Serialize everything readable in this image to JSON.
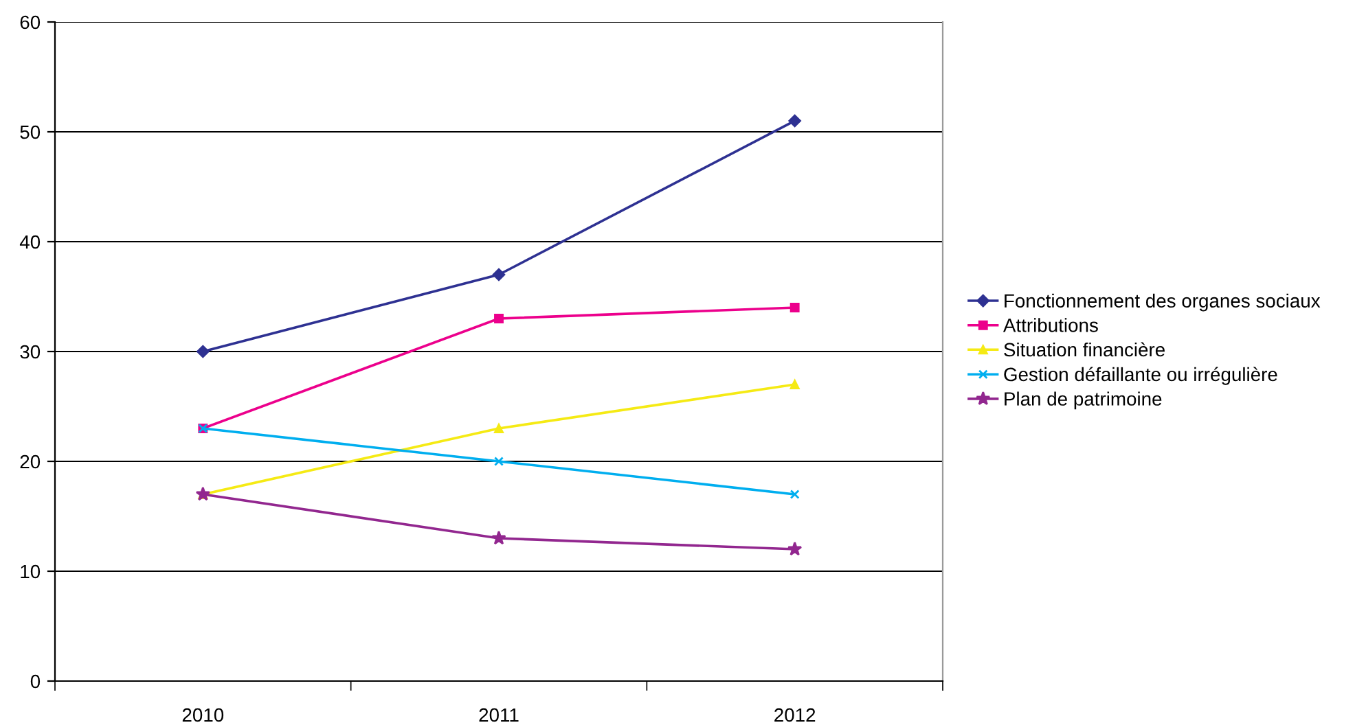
{
  "chart_data": {
    "type": "line",
    "categories": [
      "2010",
      "2011",
      "2012"
    ],
    "series": [
      {
        "name": "Fonctionnement des organes sociaux",
        "color": "#2e3192",
        "marker": "diamond",
        "values": [
          30,
          37,
          51
        ]
      },
      {
        "name": "Attributions",
        "color": "#ec008c",
        "marker": "square",
        "values": [
          23,
          33,
          34
        ]
      },
      {
        "name": "Situation financière",
        "color": "#f5ea14",
        "marker": "triangle",
        "values": [
          17,
          23,
          27
        ]
      },
      {
        "name": "Gestion défaillante ou irrégulière",
        "color": "#00aeef",
        "marker": "cross",
        "values": [
          23,
          20,
          17
        ]
      },
      {
        "name": "Plan de patrimoine",
        "color": "#92278f",
        "marker": "star",
        "values": [
          17,
          13,
          12
        ]
      }
    ],
    "ylim": [
      0,
      60
    ],
    "yticks": [
      0,
      10,
      20,
      30,
      40,
      50,
      60
    ],
    "grid": "y",
    "legend": "right",
    "line_style": "solid"
  }
}
